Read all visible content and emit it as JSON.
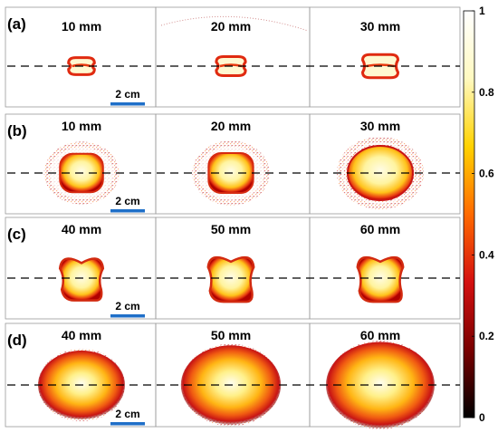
{
  "rows": [
    {
      "label": "(a)",
      "panels": [
        {
          "label": "10 mm",
          "shape": "pinched",
          "size": 0.55,
          "halo": 0
        },
        {
          "label": "20 mm",
          "shape": "pinched",
          "size": 0.62,
          "halo": 0
        },
        {
          "label": "30 mm",
          "shape": "pinched",
          "size": 0.75,
          "halo": 0
        }
      ],
      "scale_label": "2 cm"
    },
    {
      "label": "(b)",
      "panels": [
        {
          "label": "10 mm",
          "shape": "rounded",
          "size": 0.85,
          "halo": 1
        },
        {
          "label": "20 mm",
          "shape": "rounded",
          "size": 0.88,
          "halo": 1
        },
        {
          "label": "30 mm",
          "shape": "oval",
          "size": 1.0,
          "halo": 2
        }
      ],
      "scale_label": "2 cm"
    },
    {
      "label": "(c)",
      "panels": [
        {
          "label": "40 mm",
          "shape": "lobed",
          "size": 0.85,
          "halo": 0
        },
        {
          "label": "50 mm",
          "shape": "lobed",
          "size": 0.9,
          "halo": 0
        },
        {
          "label": "60 mm",
          "shape": "lobed",
          "size": 0.9,
          "halo": 0
        }
      ],
      "scale_label": "2 cm"
    },
    {
      "label": "(d)",
      "panels": [
        {
          "label": "40 mm",
          "shape": "blob",
          "size": 1.0,
          "halo": 2
        },
        {
          "label": "50 mm",
          "shape": "blob",
          "size": 1.15,
          "halo": 2
        },
        {
          "label": "60 mm",
          "shape": "blob",
          "size": 1.25,
          "halo": 2
        }
      ],
      "scale_label": "2 cm"
    }
  ],
  "colorbar": {
    "ticks": [
      {
        "value": 0,
        "label": "0"
      },
      {
        "value": 0.2,
        "label": "0.2"
      },
      {
        "value": 0.4,
        "label": "0.4"
      },
      {
        "value": 0.6,
        "label": "0.6"
      },
      {
        "value": 0.8,
        "label": "0.8"
      },
      {
        "value": 1,
        "label": "1"
      }
    ],
    "colors": [
      "#000000",
      "#7a0000",
      "#d41010",
      "#ff6a00",
      "#ffd200",
      "#fff9c0",
      "#ffffff"
    ]
  },
  "colors": {
    "scale_bar": "#1f6fc8",
    "dashed_line": "#000000",
    "panel_border": "#9a9a9a"
  }
}
